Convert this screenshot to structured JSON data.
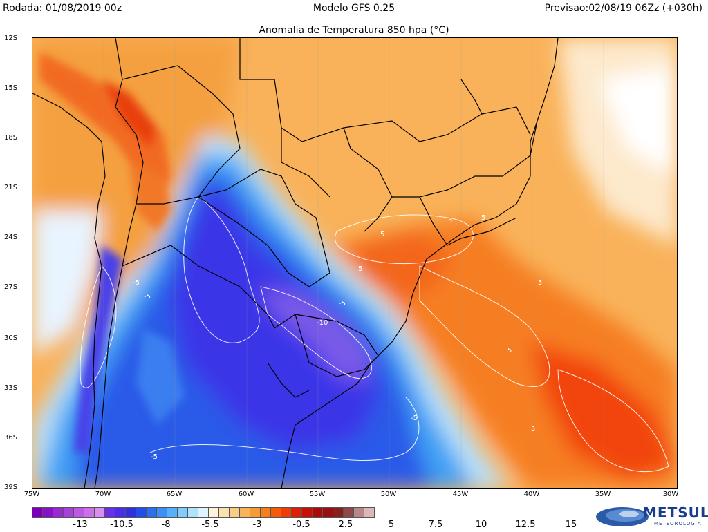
{
  "header": {
    "run": "Rodada: 01/08/2019 00z",
    "model": "Modelo GFS 0.25",
    "valid": "Previsao:02/08/19 06Zz (+030h)"
  },
  "map": {
    "title": "Anomalia de Temperatura 850 hpa (°C)",
    "lat_labels": [
      "12S",
      "15S",
      "18S",
      "21S",
      "24S",
      "27S",
      "30S",
      "33S",
      "36S",
      "39S"
    ],
    "lon_labels": [
      "75W",
      "70W",
      "65W",
      "60W",
      "55W",
      "50W",
      "45W",
      "40W",
      "35W",
      "30W"
    ],
    "contour_labels": [
      "5",
      "5",
      "5",
      "5",
      "5",
      "5",
      "5",
      "-5",
      "-5",
      "-5",
      "-5",
      "-5",
      "-10"
    ]
  },
  "colorbar": {
    "colors": [
      "#7a00b8",
      "#8a10c8",
      "#9a28d4",
      "#aa40dc",
      "#bb58e4",
      "#cc70ea",
      "#d890f0",
      "#6a30e8",
      "#4a2ee8",
      "#3030e0",
      "#2050e8",
      "#2a70f0",
      "#3a90f4",
      "#58b0f8",
      "#80ccfc",
      "#b0e2fc",
      "#e0f4ff",
      "#fdf2dc",
      "#fce0b0",
      "#fbcc84",
      "#f9b45a",
      "#f89a34",
      "#f77e1a",
      "#f45c0c",
      "#f03c06",
      "#e01e04",
      "#c81004",
      "#b00a08",
      "#981010",
      "#882020",
      "#904848",
      "#b88888",
      "#d8b8b8"
    ],
    "labels": [
      "-13",
      "-10.5",
      "-8",
      "-5.5",
      "-3",
      "-0.5",
      "2.5",
      "5",
      "7.5",
      "10",
      "12.5",
      "15"
    ]
  },
  "brand": {
    "name": "METSUL",
    "sub": "METEOROLOGIA"
  }
}
